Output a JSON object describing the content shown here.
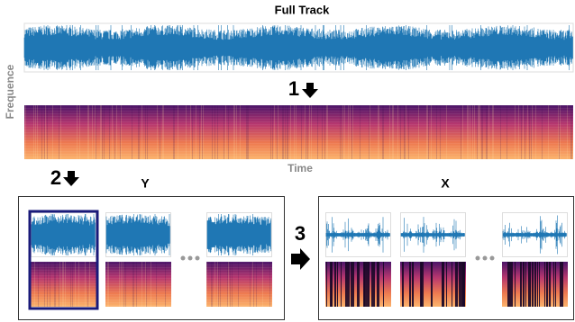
{
  "header": {
    "title": "Full Track"
  },
  "axes": {
    "y_label": "Frequence",
    "x_label": "Time"
  },
  "steps": [
    "1",
    "2",
    "3"
  ],
  "panels": {
    "left": {
      "label": "Y"
    },
    "right": {
      "label": "X"
    }
  }
}
